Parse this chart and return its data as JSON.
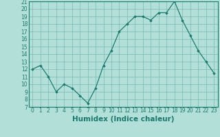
{
  "x": [
    0,
    1,
    2,
    3,
    4,
    5,
    6,
    7,
    8,
    9,
    10,
    11,
    12,
    13,
    14,
    15,
    16,
    17,
    18,
    19,
    20,
    21,
    22,
    23
  ],
  "y": [
    12,
    12.5,
    11,
    9,
    10,
    9.5,
    8.5,
    7.5,
    9.5,
    12.5,
    14.5,
    17,
    18,
    19,
    19,
    18.5,
    19.5,
    19.5,
    21,
    18.5,
    16.5,
    14.5,
    13,
    11.5
  ],
  "xlabel": "Humidex (Indice chaleur)",
  "ylabel": "",
  "line_color": "#1a7a6e",
  "marker": "D",
  "marker_size": 1.8,
  "bg_color": "#b2e0d8",
  "grid_color": "#7ab8b0",
  "ylim": [
    7,
    21
  ],
  "xlim": [
    -0.5,
    23.5
  ],
  "yticks": [
    7,
    8,
    9,
    10,
    11,
    12,
    13,
    14,
    15,
    16,
    17,
    18,
    19,
    20,
    21
  ],
  "xticks": [
    0,
    1,
    2,
    3,
    4,
    5,
    6,
    7,
    8,
    9,
    10,
    11,
    12,
    13,
    14,
    15,
    16,
    17,
    18,
    19,
    20,
    21,
    22,
    23
  ],
  "tick_fontsize": 5.5,
  "xlabel_fontsize": 7.5
}
